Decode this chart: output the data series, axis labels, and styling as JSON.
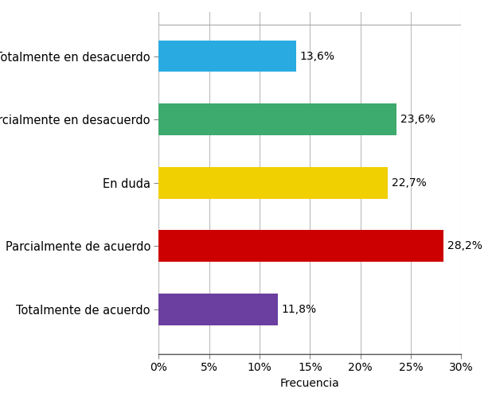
{
  "categories": [
    "Totalmente en desacuerdo",
    "Parcialmente en desacuerdo",
    "En duda",
    "Parcialmente de acuerdo",
    "Totalmente de acuerdo"
  ],
  "values": [
    13.6,
    23.6,
    22.7,
    28.2,
    11.8
  ],
  "labels": [
    "13,6%",
    "23,6%",
    "22,7%",
    "28,2%",
    "11,8%"
  ],
  "colors": [
    "#29ABE2",
    "#3DAA6E",
    "#F0D000",
    "#CC0000",
    "#6B3FA0"
  ],
  "xlabel": "Frecuencia",
  "xlim": [
    0,
    30
  ],
  "xticks": [
    0,
    5,
    10,
    15,
    20,
    25,
    30
  ],
  "bar_height": 0.5,
  "label_fontsize": 10,
  "tick_fontsize": 10,
  "xlabel_fontsize": 10,
  "category_fontsize": 10.5,
  "background_color": "#ffffff",
  "grid_color": "#bbbbbb"
}
